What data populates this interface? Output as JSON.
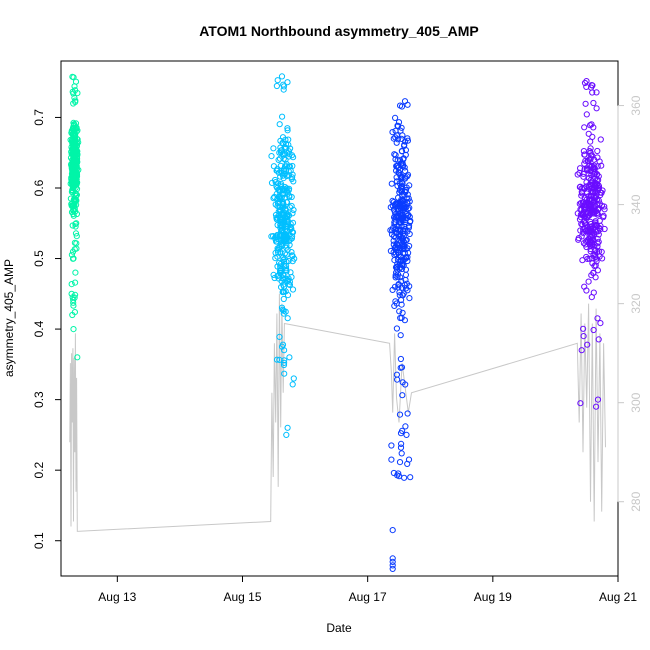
{
  "chart_data": {
    "type": "scatter",
    "title": "ATOM1 Northbound asymmetry_405_AMP",
    "xlabel": "Date",
    "ylabel": "asymmetry_405_AMP",
    "x_unit": "days in August",
    "xlim": [
      12.1,
      21.0
    ],
    "ylim": [
      0.05,
      0.78
    ],
    "y2lim": [
      265,
      369
    ],
    "x_ticks": [
      {
        "value": 13,
        "label": "Aug 13"
      },
      {
        "value": 15,
        "label": "Aug 15"
      },
      {
        "value": 17,
        "label": "Aug 17"
      },
      {
        "value": 19,
        "label": "Aug 19"
      },
      {
        "value": 21,
        "label": "Aug 21"
      }
    ],
    "y_ticks": [
      0.1,
      0.2,
      0.3,
      0.4,
      0.5,
      0.6,
      0.7
    ],
    "y2_ticks": [
      280,
      300,
      320,
      340,
      360
    ],
    "y2_color": "#c8c8c8",
    "grid": false,
    "legend": "none",
    "marker": "open-circle",
    "series": [
      {
        "color": "#00f5a8",
        "x_range": [
          12.25,
          12.38
        ],
        "y_core": [
          0.56,
          0.7
        ],
        "y_range": [
          0.36,
          0.77
        ],
        "outliers": [
          [
            12.27,
            0.45
          ],
          [
            12.28,
            0.42
          ],
          [
            12.3,
            0.4
          ],
          [
            12.33,
            0.48
          ],
          [
            12.36,
            0.36
          ],
          [
            12.3,
            0.5
          ]
        ]
      },
      {
        "color": "#00bfff",
        "x_range": [
          15.45,
          15.85
        ],
        "y_core": [
          0.44,
          0.68
        ],
        "y_range": [
          0.24,
          0.76
        ],
        "outliers": [
          [
            15.7,
            0.25
          ],
          [
            15.72,
            0.26
          ],
          [
            15.82,
            0.33
          ],
          [
            15.75,
            0.36
          ]
        ]
      },
      {
        "color": "#0a3cff",
        "x_range": [
          17.35,
          17.7
        ],
        "y_core": [
          0.4,
          0.7
        ],
        "y_range": [
          0.06,
          0.74
        ],
        "outliers": [
          [
            17.4,
            0.115
          ],
          [
            17.4,
            0.075
          ],
          [
            17.4,
            0.07
          ],
          [
            17.4,
            0.065
          ],
          [
            17.4,
            0.06
          ],
          [
            17.38,
            0.235
          ],
          [
            17.38,
            0.215
          ],
          [
            17.68,
            0.19
          ],
          [
            17.66,
            0.215
          ],
          [
            17.62,
            0.25
          ]
        ]
      },
      {
        "color": "#6a0dff",
        "x_range": [
          20.35,
          20.8
        ],
        "y_core": [
          0.48,
          0.67
        ],
        "y_range": [
          0.29,
          0.76
        ],
        "outliers": [
          [
            20.4,
            0.295
          ],
          [
            20.65,
            0.29
          ],
          [
            20.68,
            0.3
          ],
          [
            20.42,
            0.37
          ],
          [
            20.45,
            0.39
          ]
        ]
      }
    ],
    "secondary_line": {
      "color": "#c8c8c8",
      "axis": "right",
      "points": [
        [
          12.24,
          292
        ],
        [
          12.25,
          308
        ],
        [
          12.26,
          275
        ],
        [
          12.27,
          310
        ],
        [
          12.28,
          296
        ],
        [
          12.29,
          311
        ],
        [
          12.3,
          276
        ],
        [
          12.31,
          309
        ],
        [
          12.32,
          290
        ],
        [
          12.33,
          314
        ],
        [
          12.34,
          282
        ],
        [
          12.35,
          305
        ],
        [
          12.36,
          274
        ],
        [
          15.45,
          276
        ],
        [
          15.47,
          302
        ],
        [
          15.49,
          285
        ],
        [
          15.51,
          312
        ],
        [
          15.53,
          296
        ],
        [
          15.55,
          318
        ],
        [
          15.57,
          283
        ],
        [
          15.59,
          322
        ],
        [
          15.61,
          295
        ],
        [
          15.63,
          320
        ],
        [
          15.65,
          302
        ],
        [
          15.67,
          316
        ],
        [
          17.35,
          312
        ],
        [
          17.38,
          306
        ],
        [
          17.4,
          298
        ],
        [
          17.43,
          314
        ],
        [
          17.46,
          301
        ],
        [
          17.5,
          296
        ],
        [
          17.55,
          308
        ],
        [
          17.6,
          303
        ],
        [
          17.65,
          298
        ],
        [
          17.7,
          302
        ],
        [
          20.35,
          312
        ],
        [
          20.38,
          296
        ],
        [
          20.41,
          318
        ],
        [
          20.44,
          290
        ],
        [
          20.47,
          316
        ],
        [
          20.5,
          299
        ],
        [
          20.53,
          320
        ],
        [
          20.56,
          280
        ],
        [
          20.59,
          316
        ],
        [
          20.62,
          276
        ],
        [
          20.65,
          319
        ],
        [
          20.68,
          288
        ],
        [
          20.71,
          314
        ],
        [
          20.74,
          278
        ],
        [
          20.77,
          312
        ],
        [
          20.8,
          291
        ]
      ]
    }
  }
}
